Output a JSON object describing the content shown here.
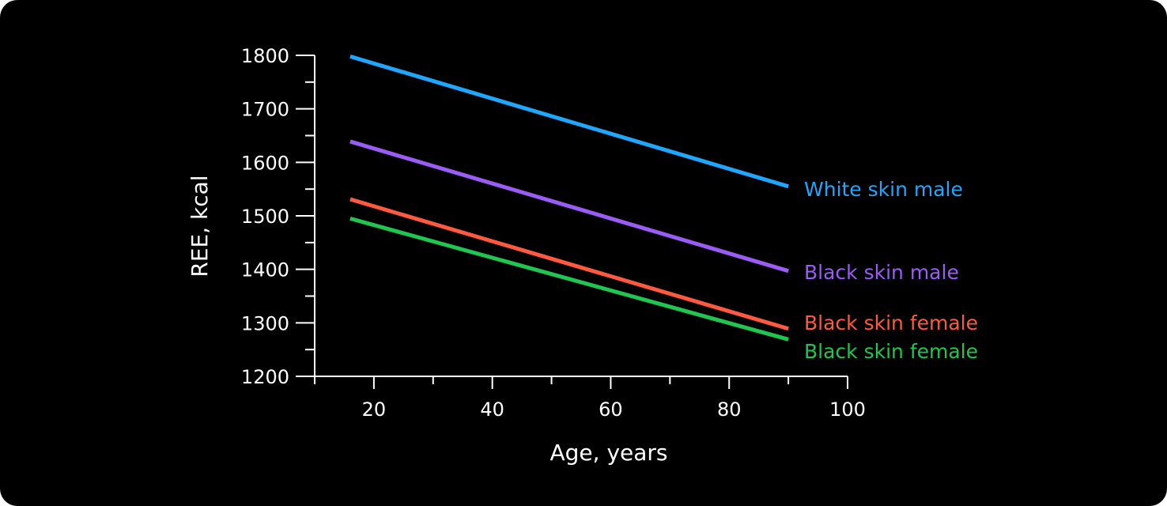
{
  "chart_data": {
    "type": "line",
    "title": "",
    "xlabel": "Age, years",
    "ylabel": "REE, kcal",
    "xlim": [
      10,
      100
    ],
    "ylim": [
      1200,
      1800
    ],
    "x_ticks": [
      20,
      40,
      60,
      80,
      100
    ],
    "y_ticks": [
      1200,
      1300,
      1400,
      1500,
      1600,
      1700,
      1800
    ],
    "grid": false,
    "legend": "inline labels at right end of lines",
    "series": [
      {
        "name": "White skin male",
        "color": "#1ea7fd",
        "x": [
          16,
          90
        ],
        "y": [
          1798,
          1555
        ]
      },
      {
        "name": "Black skin male",
        "color": "#9b5cf6",
        "x": [
          16,
          90
        ],
        "y": [
          1639,
          1397
        ]
      },
      {
        "name": "Black skin female",
        "color": "#ff5a40",
        "x": [
          16,
          90
        ],
        "y": [
          1531,
          1289
        ]
      },
      {
        "name": "Black skin female",
        "color": "#1fc64f",
        "x": [
          16,
          90
        ],
        "y": [
          1495,
          1269
        ]
      }
    ]
  }
}
